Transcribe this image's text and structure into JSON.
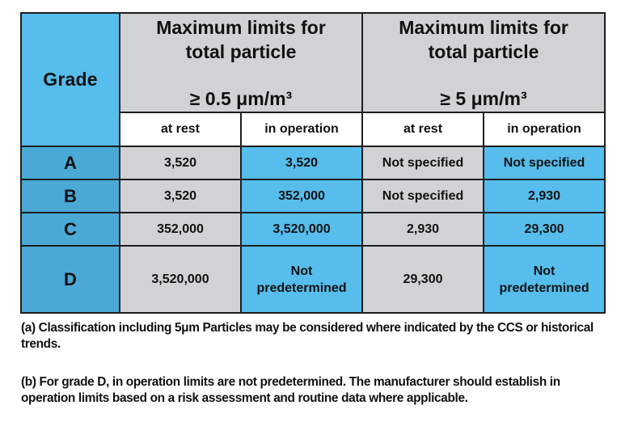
{
  "table": {
    "grade_header": "Grade",
    "groups": [
      {
        "line1": "Maximum limits for",
        "line2": "total particle",
        "size": "≥ 0.5 μm/m³",
        "subheaders": [
          "at rest",
          "in operation"
        ]
      },
      {
        "line1": "Maximum limits for",
        "line2": "total particle",
        "size": "≥ 5 μm/m³",
        "subheaders": [
          "at rest",
          "in operation"
        ]
      }
    ],
    "rows": [
      {
        "grade": "A",
        "cells": [
          {
            "lines": [
              "3,520"
            ]
          },
          {
            "lines": [
              "3,520"
            ]
          },
          {
            "lines": [
              "Not specified"
            ]
          },
          {
            "lines": [
              "Not specified"
            ]
          }
        ]
      },
      {
        "grade": "B",
        "cells": [
          {
            "lines": [
              "3,520"
            ]
          },
          {
            "lines": [
              "352,000"
            ]
          },
          {
            "lines": [
              "Not specified"
            ]
          },
          {
            "lines": [
              "2,930"
            ]
          }
        ]
      },
      {
        "grade": "C",
        "cells": [
          {
            "lines": [
              "352,000"
            ]
          },
          {
            "lines": [
              "3,520,000"
            ]
          },
          {
            "lines": [
              "2,930"
            ]
          },
          {
            "lines": [
              "29,300"
            ]
          }
        ]
      },
      {
        "grade": "D",
        "cells": [
          {
            "lines": [
              "3,520,000"
            ]
          },
          {
            "lines": [
              "Not",
              "predetermined"
            ]
          },
          {
            "lines": [
              "29,300"
            ]
          },
          {
            "lines": [
              "Not",
              "predetermined"
            ]
          }
        ]
      }
    ],
    "colors": {
      "grade_header_bg": "#56bdec",
      "grade_cell_bg": "#4ba9d6",
      "gray_cell_bg": "#d1d2d4",
      "blue_cell_bg": "#56bdec",
      "subheader_bg": "#ffffff",
      "border": "#1e1e1e"
    }
  },
  "notes": [
    "(a) Classification including 5μm Particles may be considered where indicated by the CCS or historical trends.",
    "(b) For grade D, in operation limits are not predetermined. The manufacturer should establish in operation limits based on a risk assessment and routine data where applicable."
  ]
}
